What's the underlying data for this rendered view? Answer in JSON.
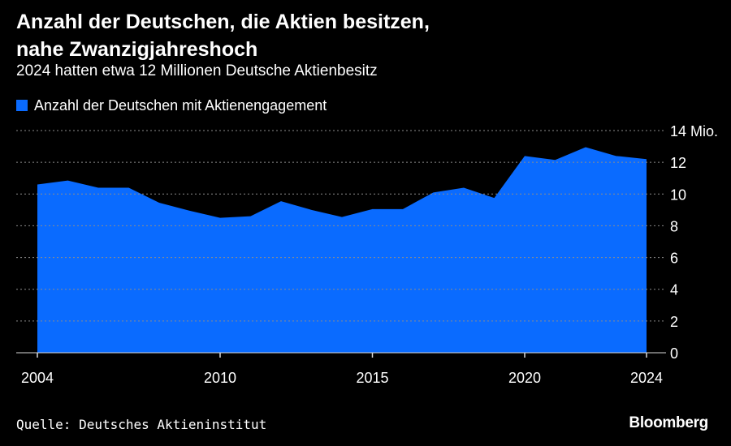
{
  "header": {
    "title_line1": "Anzahl der Deutschen, die Aktien besitzen,",
    "title_line2": "nahe Zwanzigjahreshoch",
    "subtitle": "2024 hatten etwa 12 Millionen Deutsche Aktienbesitz"
  },
  "footer": {
    "source": "Quelle: Deutsches Aktieninstitut",
    "brand": "Bloomberg"
  },
  "colors": {
    "background": "#000000",
    "area": "#0a6bff",
    "text": "#ffffff",
    "grid": "#8c8c8c"
  },
  "chart_data": {
    "type": "area",
    "series": [
      {
        "name": "Anzahl der Deutschen mit Aktienengagement",
        "color": "#0a6bff",
        "x": [
          2004,
          2005,
          2006,
          2007,
          2008,
          2009,
          2010,
          2011,
          2012,
          2013,
          2014,
          2015,
          2016,
          2017,
          2018,
          2019,
          2020,
          2021,
          2022,
          2023,
          2024
        ],
        "values": [
          10.6,
          10.85,
          10.4,
          10.4,
          9.45,
          8.95,
          8.5,
          8.6,
          9.55,
          9.0,
          8.55,
          9.05,
          9.05,
          10.1,
          10.4,
          9.75,
          12.4,
          12.15,
          12.95,
          12.4,
          12.2
        ]
      }
    ],
    "x_ticks": [
      2004,
      2010,
      2015,
      2020,
      2024
    ],
    "x_tick_labels": [
      "2004",
      "2010",
      "2015",
      "2020",
      "2024"
    ],
    "y_ticks": [
      0,
      2,
      4,
      6,
      8,
      10,
      12,
      14
    ],
    "y_tick_labels": [
      "0",
      "2",
      "4",
      "6",
      "8",
      "10",
      "12",
      "14 Mio."
    ],
    "xlim": [
      2004,
      2024
    ],
    "ylim": [
      0,
      14
    ],
    "grid": "horizontal dotted",
    "y_axis_side": "right",
    "legend_position": "top-left"
  }
}
